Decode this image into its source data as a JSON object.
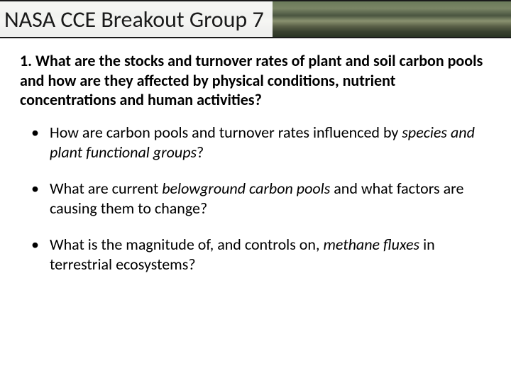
{
  "title": "NASA CCE Breakout Group 7",
  "main_question_parts": [
    "1.  What are the stocks and turnover rates of plant and soil carbon pools and how are they affected by physical conditions, nutrient concentrations and human activities?"
  ],
  "bullets": [
    {
      "pre": "How are carbon pools and turnover rates influenced by ",
      "italic": "species and plant functional groups",
      "post": "?"
    },
    {
      "pre": "What are current ",
      "italic": "belowground carbon pools",
      "post": " and what factors are causing them to change?"
    },
    {
      "pre": "What is the magnitude of, and controls on, ",
      "italic": "methane fluxes",
      "post": " in terrestrial ecosystems?"
    }
  ],
  "style": {
    "title_fontsize": 32,
    "body_fontsize": 22,
    "title_bg_gradient": [
      "#6b7a5a",
      "#7a8565",
      "#4a5540",
      "#8a9270",
      "#5a6048",
      "#3a4230",
      "#2a3525"
    ],
    "title_overlay_bg": "rgba(255,255,255,0.92)",
    "text_color": "#000000",
    "page_bg": "#ffffff",
    "border_color": "#1a1a1a"
  }
}
